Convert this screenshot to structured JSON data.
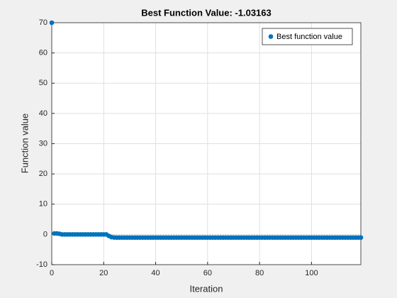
{
  "chart_data": {
    "type": "scatter",
    "title": "Best Function Value: -1.03163",
    "xlabel": "Iteration",
    "ylabel": "Function value",
    "x": [
      0,
      1,
      2,
      3,
      4,
      5,
      6,
      7,
      8,
      9,
      10,
      11,
      12,
      13,
      14,
      15,
      16,
      17,
      18,
      19,
      20,
      21,
      22,
      23,
      24,
      25,
      26,
      27,
      28,
      29,
      30,
      31,
      32,
      33,
      34,
      35,
      36,
      37,
      38,
      39,
      40,
      41,
      42,
      43,
      44,
      45,
      46,
      47,
      48,
      49,
      50,
      51,
      52,
      53,
      54,
      55,
      56,
      57,
      58,
      59,
      60,
      61,
      62,
      63,
      64,
      65,
      66,
      67,
      68,
      69,
      70,
      71,
      72,
      73,
      74,
      75,
      76,
      77,
      78,
      79,
      80,
      81,
      82,
      83,
      84,
      85,
      86,
      87,
      88,
      89,
      90,
      91,
      92,
      93,
      94,
      95,
      96,
      97,
      98,
      99,
      100,
      101,
      102,
      103,
      104,
      105,
      106,
      107,
      108,
      109,
      110,
      111,
      112,
      113,
      114,
      115,
      116,
      117,
      118,
      119
    ],
    "series": [
      {
        "name": "Best function value",
        "color": "#0072bd",
        "values": [
          70,
          0.3,
          0.3,
          0.2,
          0,
          0,
          0,
          0,
          0,
          0,
          0,
          0,
          0,
          0,
          0,
          0,
          0,
          0,
          0,
          0,
          0,
          0,
          -0.5,
          -0.9,
          -1.0,
          -1.03,
          -1.03,
          -1.03,
          -1.03,
          -1.03,
          -1.03,
          -1.03,
          -1.03,
          -1.03,
          -1.03,
          -1.03,
          -1.03,
          -1.03,
          -1.03,
          -1.03,
          -1.03,
          -1.03,
          -1.03,
          -1.03,
          -1.03,
          -1.03,
          -1.03,
          -1.03,
          -1.03,
          -1.03,
          -1.03,
          -1.03,
          -1.03,
          -1.03,
          -1.03,
          -1.03,
          -1.03,
          -1.03,
          -1.03,
          -1.03,
          -1.03,
          -1.03,
          -1.03,
          -1.03,
          -1.03,
          -1.03,
          -1.03,
          -1.03,
          -1.03,
          -1.03,
          -1.03,
          -1.03,
          -1.03,
          -1.03,
          -1.03,
          -1.03,
          -1.03,
          -1.03,
          -1.03,
          -1.03,
          -1.03,
          -1.03,
          -1.03,
          -1.03,
          -1.03,
          -1.03,
          -1.03,
          -1.03,
          -1.03,
          -1.03,
          -1.03,
          -1.03,
          -1.03,
          -1.03,
          -1.03,
          -1.03,
          -1.03,
          -1.03,
          -1.03,
          -1.03,
          -1.03,
          -1.03,
          -1.03,
          -1.03,
          -1.03,
          -1.03,
          -1.03,
          -1.03,
          -1.03,
          -1.03,
          -1.03,
          -1.03,
          -1.03,
          -1.03,
          -1.03,
          -1.03,
          -1.03,
          -1.03,
          -1.03,
          -1.03
        ]
      }
    ],
    "xlim": [
      0,
      119
    ],
    "xticks": [
      0,
      20,
      40,
      60,
      80,
      100
    ],
    "ylim": [
      -10,
      70
    ],
    "yticks": [
      -10,
      0,
      10,
      20,
      30,
      40,
      50,
      60,
      70
    ],
    "grid": true,
    "legend": "northeast"
  }
}
